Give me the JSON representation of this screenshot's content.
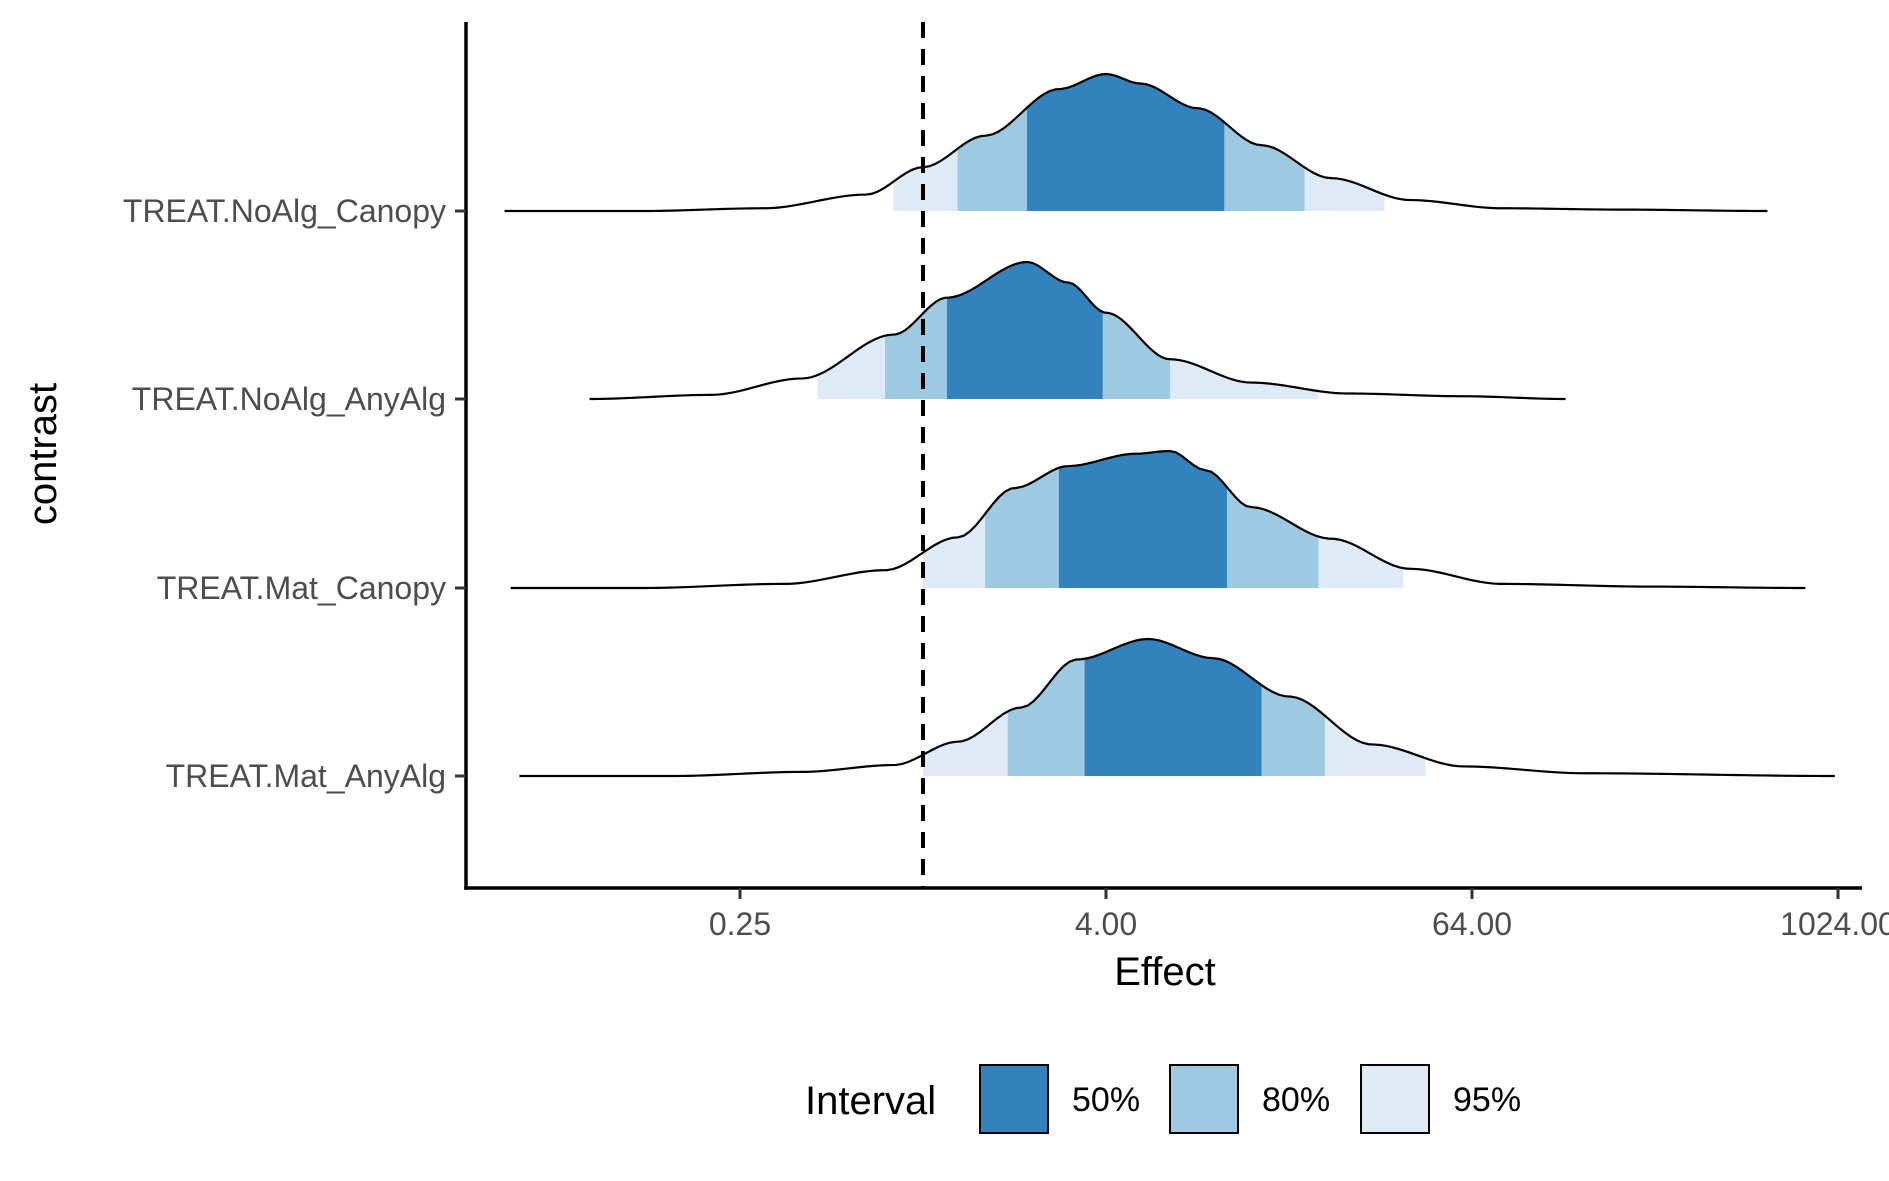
{
  "chart_data": {
    "type": "area",
    "subtype": "ridgeline density with shaded credible intervals",
    "xlabel": "Effect",
    "ylabel": "contrast",
    "x_scale": "log2",
    "xlim": [
      0.03,
      1100
    ],
    "x_ticks": [
      0.25,
      4,
      64,
      1024
    ],
    "x_tick_labels": [
      "0.25",
      "4.00",
      "64.00",
      "1024.00"
    ],
    "reference_line": {
      "x": 1,
      "style": "dashed",
      "color": "#000000"
    },
    "legend": {
      "title": "Interval",
      "position": "bottom",
      "entries": [
        {
          "label": "50%",
          "color": "#3182bd"
        },
        {
          "label": "80%",
          "color": "#9ecae1"
        },
        {
          "label": "95%",
          "color": "#deebf7"
        }
      ]
    },
    "categories": [
      "TREAT.NoAlg_Canopy",
      "TREAT.NoAlg_AnyAlg",
      "TREAT.Mat_Canopy",
      "TREAT.Mat_AnyAlg"
    ],
    "series": [
      {
        "category": "TREAT.NoAlg_Canopy",
        "intervals": {
          "95": [
            0.8,
            33
          ],
          "80": [
            1.3,
            18
          ],
          "50": [
            2.2,
            9.8
          ]
        },
        "density": [
          [
            0.042,
            0.0
          ],
          [
            0.12,
            0.0
          ],
          [
            0.3,
            0.02
          ],
          [
            0.65,
            0.12
          ],
          [
            1.0,
            0.32
          ],
          [
            1.6,
            0.55
          ],
          [
            2.8,
            0.89
          ],
          [
            4.0,
            1.0
          ],
          [
            5.2,
            0.93
          ],
          [
            8.0,
            0.75
          ],
          [
            13.0,
            0.48
          ],
          [
            22.0,
            0.24
          ],
          [
            40.0,
            0.08
          ],
          [
            80.0,
            0.02
          ],
          [
            200.0,
            0.01
          ],
          [
            600.0,
            0.0
          ]
        ]
      },
      {
        "category": "TREAT.NoAlg_AnyAlg",
        "intervals": {
          "95": [
            0.45,
            20
          ],
          "80": [
            0.75,
            6.5
          ],
          "50": [
            1.2,
            3.9
          ]
        },
        "density": [
          [
            0.08,
            0.0
          ],
          [
            0.2,
            0.03
          ],
          [
            0.4,
            0.15
          ],
          [
            0.8,
            0.47
          ],
          [
            1.2,
            0.74
          ],
          [
            2.2,
            1.0
          ],
          [
            3.0,
            0.85
          ],
          [
            4.0,
            0.63
          ],
          [
            6.5,
            0.29
          ],
          [
            12.0,
            0.12
          ],
          [
            25.0,
            0.04
          ],
          [
            60.0,
            0.02
          ],
          [
            130.0,
            0.0
          ]
        ]
      },
      {
        "category": "TREAT.Mat_Canopy",
        "intervals": {
          "95": [
            1.0,
            38
          ],
          "80": [
            1.6,
            20
          ],
          "50": [
            2.8,
            10
          ]
        },
        "density": [
          [
            0.044,
            0.0
          ],
          [
            0.12,
            0.0
          ],
          [
            0.35,
            0.03
          ],
          [
            0.75,
            0.13
          ],
          [
            1.3,
            0.37
          ],
          [
            2.0,
            0.73
          ],
          [
            3.0,
            0.89
          ],
          [
            5.0,
            0.98
          ],
          [
            6.5,
            1.0
          ],
          [
            8.5,
            0.86
          ],
          [
            12.0,
            0.59
          ],
          [
            22.0,
            0.36
          ],
          [
            40.0,
            0.14
          ],
          [
            80.0,
            0.03
          ],
          [
            250.0,
            0.01
          ],
          [
            800.0,
            0.0
          ]
        ]
      },
      {
        "category": "TREAT.Mat_AnyAlg",
        "intervals": {
          "95": [
            1.0,
            45
          ],
          "80": [
            1.9,
            21
          ],
          "50": [
            3.4,
            13
          ]
        },
        "density": [
          [
            0.047,
            0.0
          ],
          [
            0.15,
            0.0
          ],
          [
            0.4,
            0.03
          ],
          [
            0.8,
            0.08
          ],
          [
            1.3,
            0.25
          ],
          [
            2.1,
            0.5
          ],
          [
            3.2,
            0.85
          ],
          [
            5.5,
            1.0
          ],
          [
            9.0,
            0.86
          ],
          [
            16.0,
            0.58
          ],
          [
            30.0,
            0.23
          ],
          [
            60.0,
            0.07
          ],
          [
            150.0,
            0.02
          ],
          [
            1000.0,
            0.0
          ]
        ]
      }
    ]
  }
}
